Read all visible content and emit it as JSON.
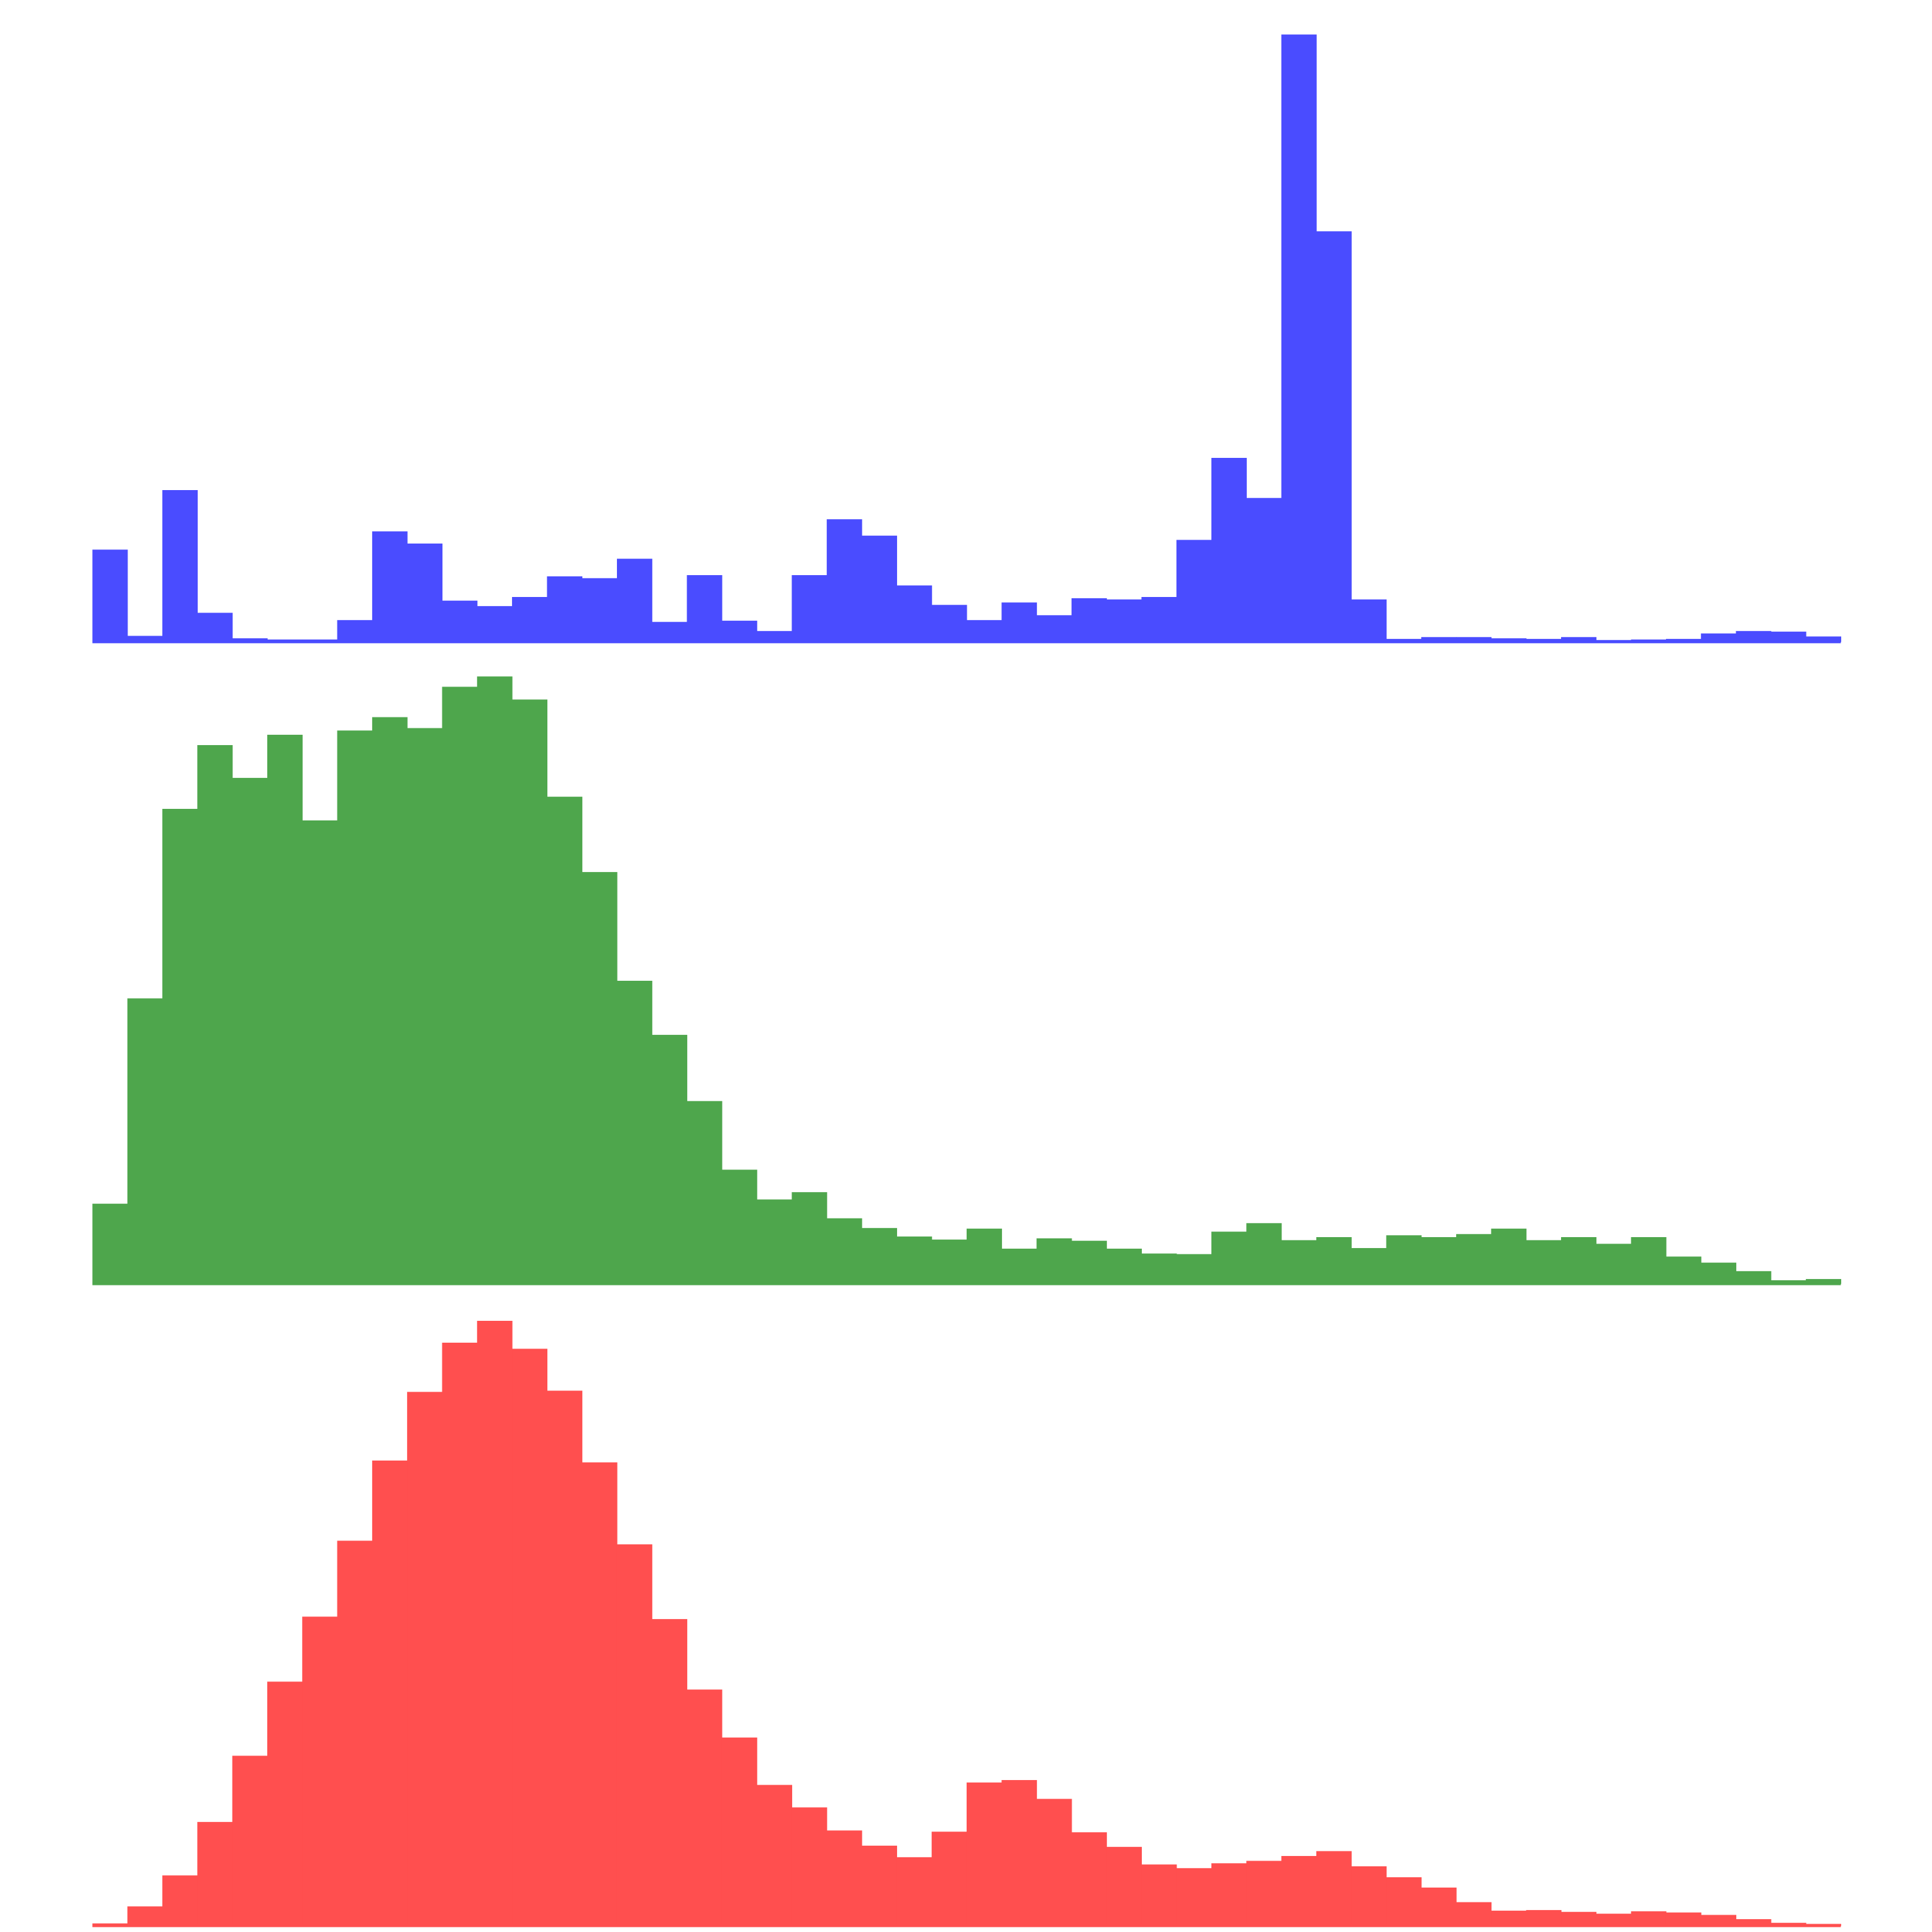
{
  "chart_data": [
    {
      "type": "bar",
      "color": "#4a4cff",
      "ylim": [
        0,
        100
      ],
      "values": [
        15.2,
        1.0,
        25.0,
        4.8,
        0.6,
        0.4,
        0.4,
        3.6,
        18.2,
        16.2,
        6.8,
        5.9,
        7.4,
        10.8,
        10.5,
        13.7,
        3.3,
        11.0,
        3.5,
        1.8,
        11.0,
        20.2,
        17.5,
        9.3,
        6.1,
        3.6,
        6.5,
        4.4,
        7.2,
        7.0,
        7.4,
        16.8,
        30.3,
        23.7,
        100.0,
        67.6,
        7.0,
        0.5,
        0.8,
        0.8,
        0.6,
        0.5,
        0.8,
        0.1,
        0.4,
        0.5,
        1.4,
        1.8,
        1.7,
        0.9
      ]
    },
    {
      "type": "bar",
      "color": "#4ea64c",
      "ylim": [
        0,
        100
      ],
      "values": [
        13.2,
        47.0,
        78.2,
        88.7,
        83.3,
        90.4,
        76.3,
        91.1,
        93.3,
        91.5,
        98.3,
        100.0,
        96.2,
        80.2,
        67.8,
        49.9,
        41.0,
        30.1,
        18.8,
        13.9,
        15.1,
        10.8,
        9.2,
        7.8,
        7.3,
        9.1,
        5.8,
        7.5,
        7.1,
        5.8,
        5.0,
        4.9,
        8.6,
        10.0,
        7.2,
        7.7,
        5.9,
        8.0,
        7.7,
        8.2,
        9.1,
        7.2,
        7.7,
        6.6,
        7.7,
        4.5,
        3.5,
        2.1,
        0.6,
        0.8
      ]
    },
    {
      "type": "bar",
      "color": "#ff4f4f",
      "ylim": [
        0,
        100
      ],
      "values": [
        0.4,
        3.2,
        8.3,
        17.1,
        28.0,
        40.2,
        50.9,
        63.4,
        76.6,
        87.9,
        96.0,
        99.6,
        95.0,
        88.1,
        76.3,
        62.8,
        50.5,
        38.9,
        31.0,
        23.2,
        19.5,
        15.7,
        13.2,
        11.3,
        15.5,
        23.6,
        24.0,
        20.9,
        15.4,
        13.0,
        10.1,
        9.5,
        10.3,
        10.7,
        11.5,
        12.3,
        9.8,
        8.0,
        6.3,
        3.9,
        2.5,
        2.6,
        2.3,
        2.0,
        2.4,
        2.2,
        1.8,
        1.1,
        0.5,
        0.3
      ]
    }
  ]
}
